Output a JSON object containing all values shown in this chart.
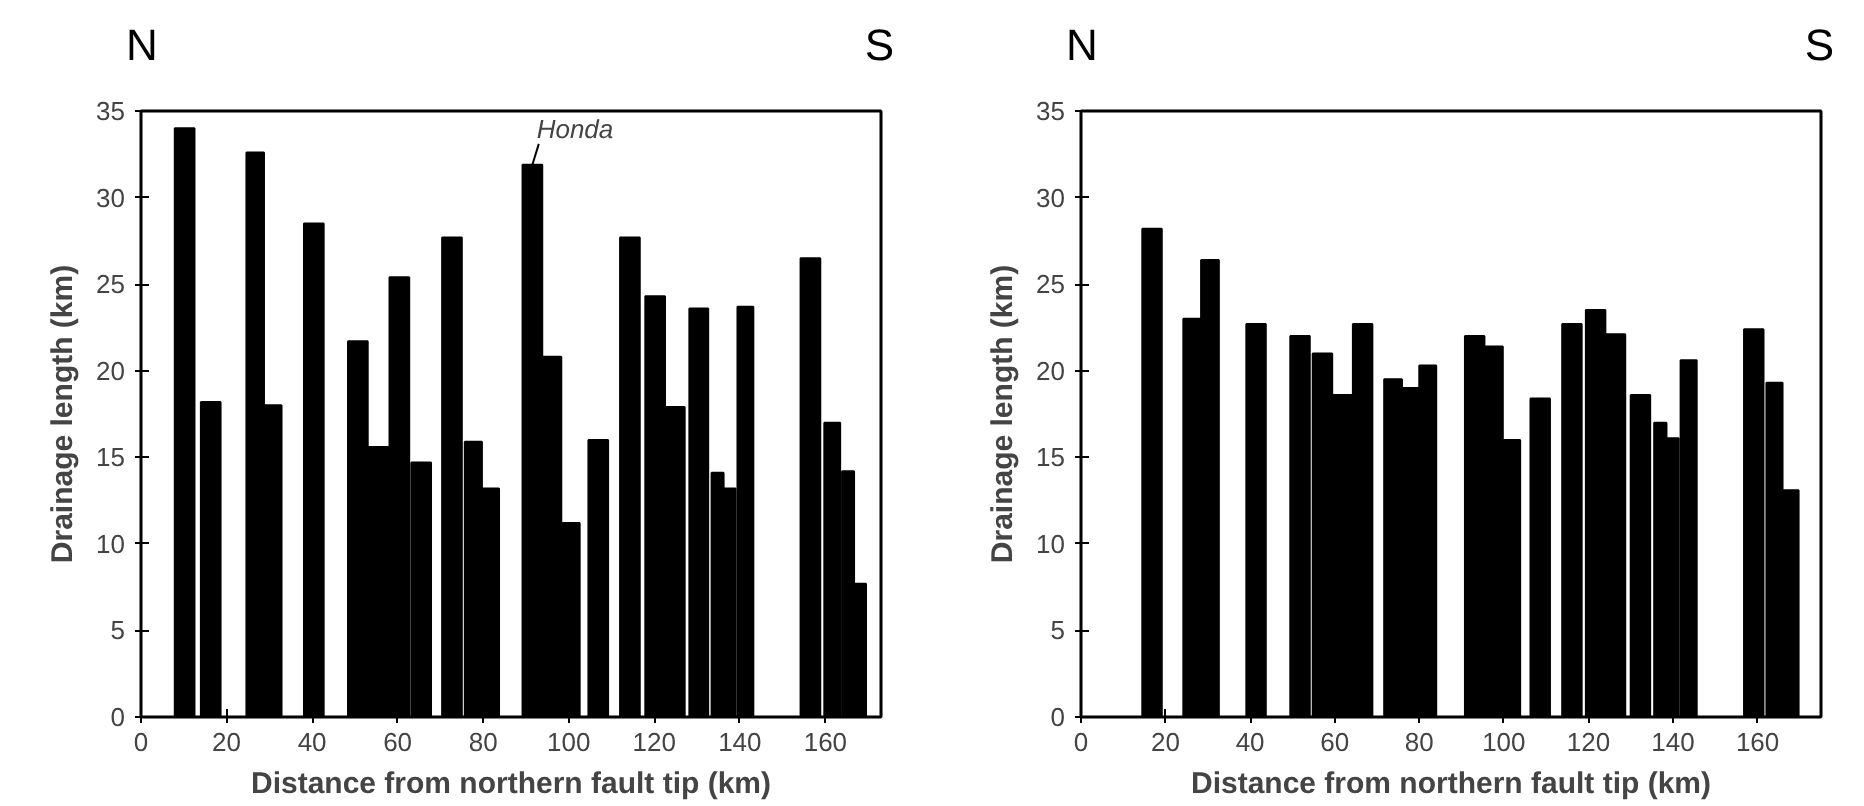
{
  "chart_data": [
    {
      "type": "bar",
      "xlabel": "Distance from northern fault tip (km)",
      "ylabel": "Drainage length (km)",
      "annotations": [
        "N",
        "S",
        {
          "text": "Honda",
          "x": 91.5,
          "y": 31.9
        }
      ],
      "x": [
        10.2,
        16.3,
        26.7,
        30.8,
        40.4,
        50.7,
        55.5,
        60.4,
        65.5,
        72.7,
        77.7,
        81.7,
        91.5,
        96.1,
        100.4,
        106.9,
        114.3,
        120.2,
        124.8,
        130.4,
        134.8,
        137.6,
        141.3,
        156.5,
        161.6,
        165.3,
        168.1
      ],
      "values": [
        34.0,
        18.2,
        32.6,
        18.0,
        28.5,
        21.7,
        15.6,
        25.4,
        14.7,
        27.7,
        15.9,
        13.2,
        31.9,
        20.8,
        11.2,
        16.0,
        27.7,
        24.3,
        17.9,
        23.6,
        14.1,
        13.2,
        23.7,
        26.5,
        17.0,
        14.2,
        7.7
      ],
      "color": "#000000",
      "xlim": [
        0,
        173
      ],
      "ylim": [
        0,
        35
      ],
      "xticks": [
        0,
        20,
        40,
        60,
        80,
        100,
        120,
        140,
        160
      ],
      "yticks": [
        0,
        5,
        10,
        15,
        20,
        25,
        30,
        35
      ],
      "grid": false
    },
    {
      "type": "bar",
      "xlabel": "Distance from northern fault tip (km)",
      "ylabel": "Drainage length (km)",
      "annotations": [
        "N",
        "S"
      ],
      "x": [
        16.8,
        26.3,
        30.5,
        41.4,
        51.8,
        57.1,
        61.9,
        66.6,
        73.8,
        78.0,
        82.0,
        93.1,
        97.7,
        101.8,
        108.6,
        116.1,
        121.7,
        126.4,
        132.3,
        137.0,
        139.9,
        143.7,
        159.1,
        164.0,
        167.8
      ],
      "values": [
        28.2,
        23.0,
        26.4,
        22.7,
        22.0,
        21.0,
        18.6,
        22.7,
        19.5,
        19.0,
        20.3,
        22.0,
        21.4,
        16.0,
        18.4,
        22.7,
        23.5,
        22.1,
        18.6,
        17.0,
        16.1,
        20.6,
        22.4,
        19.3,
        13.1
      ],
      "color": "#000000",
      "xlim": [
        0,
        175
      ],
      "ylim": [
        0,
        35
      ],
      "xticks": [
        0,
        20,
        40,
        60,
        80,
        100,
        120,
        140,
        160
      ],
      "yticks": [
        0,
        5,
        10,
        15,
        20,
        25,
        30,
        35
      ],
      "grid": false
    }
  ]
}
